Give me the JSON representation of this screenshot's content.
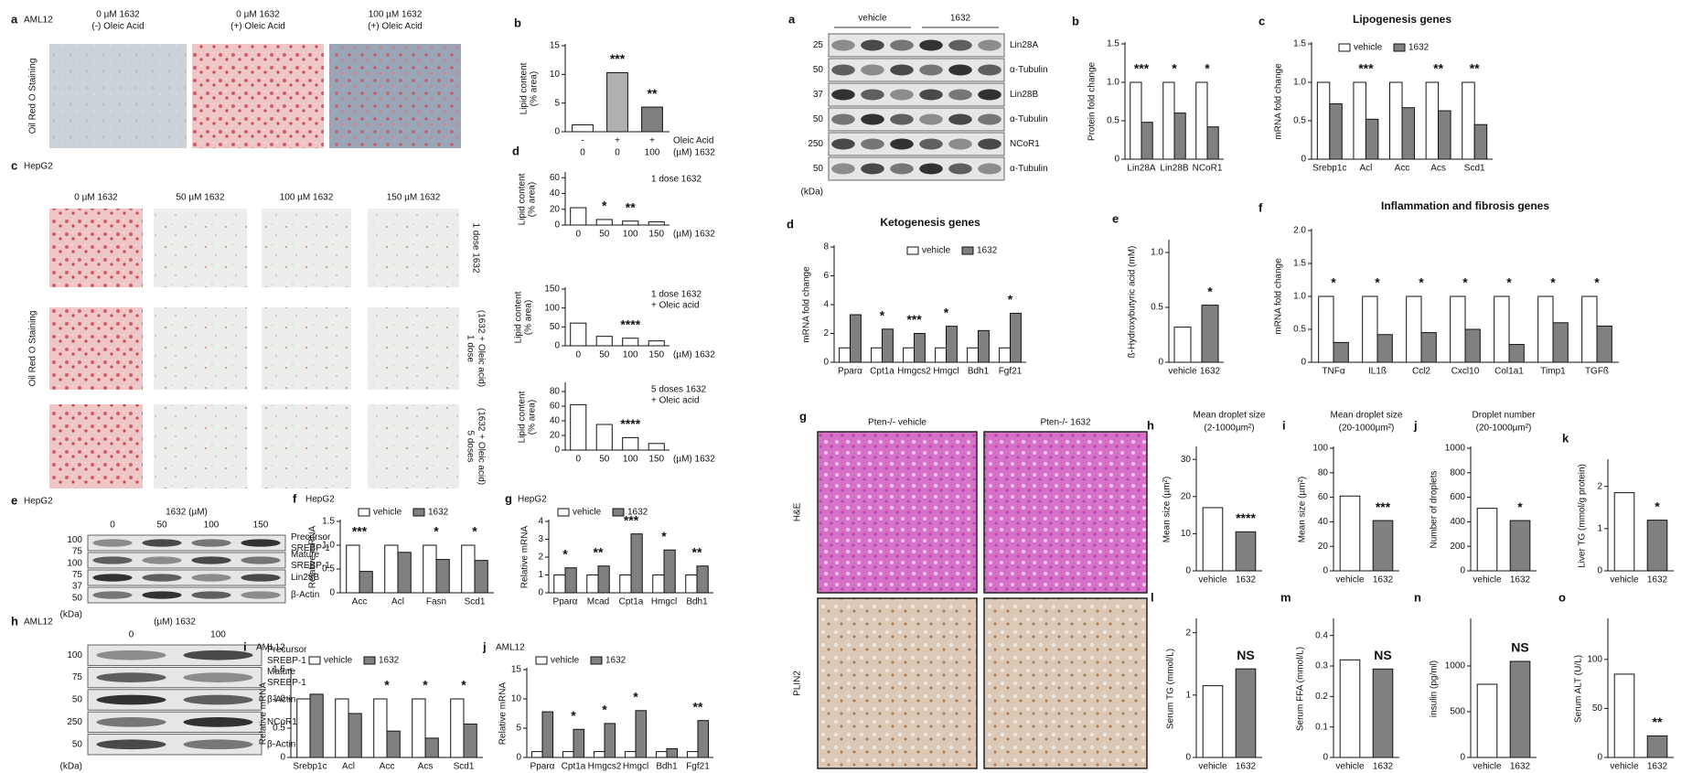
{
  "image_panels": [
    {
      "letter": "a",
      "cell": "AML12",
      "ylabel": "Oil Red O Staining",
      "columns": [
        [
          "0 µM 1632",
          "(-) Oleic Acid"
        ],
        [
          "0 µM 1632",
          "(+) Oleic Acid"
        ],
        [
          "100 µM 1632",
          "(+) Oleic Acid"
        ]
      ]
    },
    {
      "letter": "c",
      "cell": "HepG2",
      "ylabel": "Oil Red O Staining",
      "columns": [
        [
          "0 µM 1632"
        ],
        [
          "50 µM 1632"
        ],
        [
          "100 µM 1632"
        ],
        [
          "150 µM 1632"
        ]
      ],
      "rows": [
        [
          "1 dose 1632"
        ],
        [
          "1 dose",
          "(1632 + Oleic acid)"
        ],
        [
          "5 doses",
          "(1632 + Oleic acid)"
        ]
      ]
    },
    {
      "letter": "g",
      "columns": [
        [
          "Pten-/- vehicle"
        ],
        [
          "Pten-/- 1632"
        ]
      ],
      "rows": [
        [
          "H&E"
        ],
        [
          "PLIN2"
        ]
      ]
    }
  ],
  "blots": [
    {
      "letter": "e",
      "cell": "HepG2",
      "header": "1632 (µM)",
      "lanes": [
        "0",
        "50",
        "100",
        "150"
      ],
      "bands": [
        [
          "Precursor",
          "SREBP-1"
        ],
        [
          "Mature",
          "SREBP-1"
        ],
        [
          "Lin28B"
        ],
        [
          "β-Actin"
        ]
      ],
      "markers": [
        "100",
        "75",
        "100",
        "75",
        "37",
        "50"
      ],
      "unit": "(kDa)"
    },
    {
      "letter": "h",
      "cell": "AML12",
      "header": "(µM) 1632",
      "lanes": [
        "0",
        "100"
      ],
      "bands": [
        [
          "Precursor",
          "SREBP-1"
        ],
        [
          "Mature",
          "SREBP-1"
        ],
        [
          "β-Actin"
        ],
        [
          "NCoR1"
        ],
        [
          "β-Actin"
        ]
      ],
      "markers": [
        "100",
        "75",
        "50",
        "250",
        "50"
      ],
      "unit": "(kDa)"
    },
    {
      "letter": "a",
      "groups": [
        "vehicle",
        "1632"
      ],
      "bands": [
        [
          "Lin28A"
        ],
        [
          "α-Tubulin"
        ],
        [
          "Lin28B"
        ],
        [
          "α-Tubulin"
        ],
        [
          "NCoR1"
        ],
        [
          "α-Tubulin"
        ]
      ],
      "markers": [
        "25",
        "50",
        "37",
        "50",
        "250",
        "50"
      ],
      "unit": "(kDa)"
    }
  ],
  "chart_data": [
    {
      "type": "bar",
      "label": "b",
      "ylabel": [
        "Lipid content",
        "(% area)"
      ],
      "categories": [
        "-",
        "+",
        "+"
      ],
      "categories2": [
        "0",
        "0",
        "100"
      ],
      "row_labels": [
        "Oleic Acid",
        "(µM) 1632"
      ],
      "values": [
        1.2,
        10.3,
        4.3
      ],
      "colors": [
        "#ffffff",
        "#b0b0b0",
        "#808080"
      ],
      "ylim": [
        0,
        15
      ],
      "yticks": [
        0,
        5,
        10,
        15
      ],
      "significance": [
        null,
        "***",
        "**"
      ],
      "sig_color": "#d62728"
    },
    {
      "type": "bar",
      "label": "d",
      "ylabel": [
        "Lipid content",
        "(% area)"
      ],
      "categories": [
        "0",
        "50",
        "100",
        "150"
      ],
      "x_unit": "(µM) 1632",
      "note": [
        "1 dose 1632"
      ],
      "values": [
        22,
        7,
        5,
        4
      ],
      "color": "#ffffff",
      "ylim": [
        0,
        65
      ],
      "yticks": [
        0,
        20,
        40,
        60
      ],
      "significance": [
        null,
        "*",
        "**",
        null
      ],
      "sig_color": "#d62728"
    },
    {
      "type": "bar",
      "ylabel": [
        "Lipid content",
        "(% area)"
      ],
      "categories": [
        "0",
        "50",
        "100",
        "150"
      ],
      "x_unit": "(µM) 1632",
      "note": [
        "1 dose 1632",
        "+ Oleic acid"
      ],
      "values": [
        60,
        25,
        20,
        13
      ],
      "color": "#ffffff",
      "ylim": [
        0,
        150
      ],
      "yticks": [
        0,
        50,
        100,
        150
      ],
      "significance": [
        null,
        null,
        "****",
        null
      ],
      "sig_color": "#d62728"
    },
    {
      "type": "bar",
      "ylabel": [
        "Lipid content",
        "(% area)"
      ],
      "categories": [
        "0",
        "50",
        "100",
        "150"
      ],
      "x_unit": "(µM) 1632",
      "note": [
        "5 doses 1632",
        "+ Oleic acid"
      ],
      "values": [
        62,
        35,
        17,
        9
      ],
      "color": "#ffffff",
      "ylim": [
        0,
        90
      ],
      "yticks": [
        0,
        20,
        40,
        60,
        80
      ],
      "significance": [
        null,
        null,
        "****",
        null
      ],
      "sig_color": "#d62728"
    },
    {
      "type": "bar",
      "label": "f",
      "header": "HepG2",
      "ylabel": [
        "Relative mRNA"
      ],
      "categories": [
        "Acc",
        "Acl",
        "Fasn",
        "Scd1"
      ],
      "legend": true,
      "series": [
        {
          "name": "vehicle",
          "color": "#ffffff",
          "values": [
            1,
            1,
            1,
            1
          ]
        },
        {
          "name": "1632",
          "color": "#808080",
          "values": [
            0.45,
            0.85,
            0.7,
            0.68
          ]
        }
      ],
      "ylim": [
        0,
        1.5
      ],
      "yticks": [
        0,
        0.5,
        {
          "value": 1,
          "label": "1.0"
        },
        1.5
      ],
      "significance": [
        "***",
        null,
        "*",
        "*"
      ],
      "sig_color": "#d62728"
    },
    {
      "type": "bar",
      "label": "g",
      "header": "HepG2",
      "ylabel": [
        "Relative mRNA"
      ],
      "categories": [
        "Pparα",
        "Mcad",
        "Cpt1a",
        "Hmgcl",
        "Bdh1"
      ],
      "legend": true,
      "series": [
        {
          "name": "vehicle",
          "color": "#ffffff",
          "values": [
            1,
            1,
            1,
            1,
            1
          ]
        },
        {
          "name": "1632",
          "color": "#808080",
          "values": [
            1.4,
            1.5,
            3.3,
            2.4,
            1.5
          ]
        }
      ],
      "ylim": [
        0,
        4
      ],
      "yticks": [
        0,
        1,
        2,
        3,
        4
      ],
      "significance": [
        "*",
        "**",
        "***",
        "*",
        "**"
      ],
      "sig_color": "#d62728"
    },
    {
      "type": "bar",
      "label": "i",
      "header": "AML12",
      "ylabel": [
        "Relative mRNA"
      ],
      "categories": [
        "Srebp1c",
        "Acl",
        "Acc",
        "Acs",
        "Scd1"
      ],
      "legend": true,
      "series": [
        {
          "name": "vehicle",
          "color": "#ffffff",
          "values": [
            1,
            1,
            1,
            1,
            1
          ]
        },
        {
          "name": "1632",
          "color": "#808080",
          "values": [
            1.08,
            0.75,
            0.45,
            0.33,
            0.57
          ]
        }
      ],
      "ylim": [
        0,
        1.5
      ],
      "yticks": [
        0,
        0.5,
        {
          "value": 1,
          "label": "1.0"
        },
        1.5
      ],
      "significance": [
        null,
        null,
        "*",
        "*",
        "*"
      ],
      "sig_color": "#d62728"
    },
    {
      "type": "bar",
      "label": "j",
      "header": "AML12",
      "ylabel": [
        "Relative mRNA"
      ],
      "categories": [
        "Pparα",
        "Cpt1a",
        "Hmgcs2",
        "Hmgcl",
        "Bdh1",
        "Fgf21"
      ],
      "legend": true,
      "series": [
        {
          "name": "vehicle",
          "color": "#ffffff",
          "values": [
            1,
            1,
            1,
            1,
            1,
            1
          ]
        },
        {
          "name": "1632",
          "color": "#808080",
          "values": [
            7.8,
            4.8,
            5.8,
            8,
            1.5,
            6.3
          ]
        }
      ],
      "ylim": [
        0,
        15
      ],
      "yticks": [
        0,
        5,
        10,
        15
      ],
      "significance": [
        null,
        "*",
        "*",
        "*",
        null,
        "**"
      ],
      "sig_color": "#d62728"
    },
    {
      "type": "bar",
      "label": "b",
      "ylabel": [
        "Protein fold change"
      ],
      "categories": [
        "Lin28A",
        "Lin28B",
        "NCoR1"
      ],
      "series": [
        {
          "name": "vehicle",
          "color": "#ffffff",
          "values": [
            1,
            1,
            1
          ]
        },
        {
          "name": "1632",
          "color": "#808080",
          "values": [
            0.48,
            0.6,
            0.42
          ]
        }
      ],
      "ylim": [
        0,
        1.5
      ],
      "yticks": [
        0,
        0.5,
        {
          "value": 1,
          "label": "1.0"
        },
        1.5
      ],
      "significance": [
        "***",
        "*",
        "*"
      ],
      "sig_color": "#d62728"
    },
    {
      "type": "bar",
      "label": "c",
      "title": "Lipogenesis genes",
      "ylabel": [
        "mRNA fold change"
      ],
      "categories": [
        "Srebp1c",
        "Acl",
        "Acc",
        "Acs",
        "Scd1"
      ],
      "legend": true,
      "series": [
        {
          "name": "vehicle",
          "color": "#ffffff",
          "values": [
            1,
            1,
            1,
            1,
            1
          ]
        },
        {
          "name": "1632",
          "color": "#808080",
          "values": [
            0.72,
            0.52,
            0.67,
            0.63,
            0.45
          ]
        }
      ],
      "ylim": [
        0,
        1.5
      ],
      "yticks": [
        0,
        0.5,
        {
          "value": 1,
          "label": "1.0"
        },
        1.5
      ],
      "significance": [
        null,
        "***",
        null,
        "**",
        "**"
      ],
      "sig_color": "#d62728"
    },
    {
      "type": "bar",
      "label": "d",
      "title": "Ketogenesis genes",
      "ylabel": [
        "mRNA fold change"
      ],
      "categories": [
        "Pparα",
        "Cpt1a",
        "Hmgcs2",
        "Hmgcl",
        "Bdh1",
        "Fgf21"
      ],
      "legend": true,
      "series": [
        {
          "name": "vehicle",
          "color": "#ffffff",
          "values": [
            1,
            1,
            1,
            1,
            1,
            1
          ]
        },
        {
          "name": "1632",
          "color": "#808080",
          "values": [
            3.3,
            2.3,
            2.0,
            2.5,
            2.2,
            3.4
          ]
        }
      ],
      "ylim": [
        0,
        8
      ],
      "yticks": [
        0,
        2,
        4,
        6,
        8
      ],
      "significance": [
        null,
        "*",
        "***",
        "*",
        null,
        "*"
      ],
      "sig_color": "#d62728"
    },
    {
      "type": "bar",
      "label": "e",
      "ylabel": [
        "ß-Hydroxybutyric acid (mM)"
      ],
      "categories": [
        "vehicle",
        "1632"
      ],
      "values": [
        0.32,
        0.52
      ],
      "colors": [
        "#ffffff",
        "#808080"
      ],
      "ylim": [
        0,
        1.1
      ],
      "yticks": [
        0,
        0.5,
        {
          "value": 1,
          "label": "1.0"
        }
      ],
      "significance": [
        null,
        "*"
      ],
      "sig_color": "#d62728"
    },
    {
      "type": "bar",
      "label": "f",
      "title": "Inflammation and fibrosis genes",
      "ylabel": [
        "mRNA fold change"
      ],
      "categories": [
        "TNFα",
        "IL1ß",
        "Ccl2",
        "Cxcl10",
        "Col1a1",
        "Timp1",
        "TGFß"
      ],
      "series": [
        {
          "name": "vehicle",
          "color": "#ffffff",
          "values": [
            1,
            1,
            1,
            1,
            1,
            1,
            1
          ]
        },
        {
          "name": "1632",
          "color": "#808080",
          "values": [
            0.3,
            0.42,
            0.45,
            0.5,
            0.27,
            0.6,
            0.55
          ]
        }
      ],
      "ylim": [
        0,
        2
      ],
      "yticks": [
        0,
        0.5,
        {
          "value": 1,
          "label": "1.0"
        },
        1.5,
        {
          "value": 2,
          "label": "2.0"
        }
      ],
      "significance": [
        "*",
        "*",
        "*",
        "*",
        "*",
        "*",
        "*"
      ],
      "sig_color": "#d62728"
    },
    {
      "type": "bar",
      "label": "h",
      "title": "Mean droplet size",
      "subtitle": "(2-1000µm²)",
      "ylabel": [
        "Mean size (µm²)"
      ],
      "categories": [
        "vehicle",
        "1632"
      ],
      "values": [
        17,
        10.5
      ],
      "colors": [
        "#ffffff",
        "#808080"
      ],
      "ylim": [
        0,
        33
      ],
      "yticks": [
        0,
        10,
        20,
        30
      ],
      "significance": [
        null,
        "****"
      ],
      "sig_color": "#d62728"
    },
    {
      "type": "bar",
      "label": "i",
      "title": "Mean droplet size",
      "subtitle": "(20-1000µm²)",
      "ylabel": [
        "Mean size (µm²)"
      ],
      "categories": [
        "vehicle",
        "1632"
      ],
      "values": [
        61,
        41
      ],
      "colors": [
        "#ffffff",
        "#808080"
      ],
      "ylim": [
        0,
        100
      ],
      "yticks": [
        0,
        20,
        40,
        60,
        80,
        100
      ],
      "significance": [
        null,
        "***"
      ],
      "sig_color": "#d62728"
    },
    {
      "type": "bar",
      "label": "j",
      "title": "Droplet number",
      "subtitle": "(20-1000µm²)",
      "ylabel": [
        "Number of droplets"
      ],
      "categories": [
        "vehicle",
        "1632"
      ],
      "values": [
        510,
        410
      ],
      "colors": [
        "#ffffff",
        "#808080"
      ],
      "ylim": [
        0,
        1000
      ],
      "yticks": [
        0,
        200,
        400,
        600,
        800,
        1000
      ],
      "significance": [
        null,
        "*"
      ],
      "sig_color": "#d62728"
    },
    {
      "type": "bar",
      "label": "k",
      "ylabel": [
        "Liver TG (mmol/g protein)"
      ],
      "categories": [
        "vehicle",
        "1632"
      ],
      "values": [
        1.85,
        1.2
      ],
      "colors": [
        "#ffffff",
        "#808080"
      ],
      "ylim": [
        0,
        2.6
      ],
      "yticks": [
        0,
        1,
        2
      ],
      "significance": [
        null,
        "*"
      ],
      "sig_color": "#d62728"
    },
    {
      "type": "bar",
      "label": "l",
      "ylabel": [
        "Serum TG (mmol/L)"
      ],
      "categories": [
        "vehicle",
        "1632"
      ],
      "values": [
        1.15,
        1.42
      ],
      "colors": [
        "#ffffff",
        "#808080"
      ],
      "ylim": [
        0,
        2.2
      ],
      "yticks": [
        0,
        1,
        2
      ],
      "significance": [
        null,
        "NS"
      ],
      "sig_color": "#111111"
    },
    {
      "type": "bar",
      "label": "m",
      "ylabel": [
        "Serum FFA (mmol/L)"
      ],
      "categories": [
        "vehicle",
        "1632"
      ],
      "values": [
        0.32,
        0.29
      ],
      "colors": [
        "#ffffff",
        "#808080"
      ],
      "ylim": [
        0,
        0.45
      ],
      "yticks": [
        0,
        0.1,
        0.2,
        0.3,
        0.4
      ],
      "significance": [
        null,
        "NS"
      ],
      "sig_color": "#111111"
    },
    {
      "type": "bar",
      "label": "n",
      "ylabel": [
        "insulin (pg/ml)"
      ],
      "categories": [
        "vehicle",
        "1632"
      ],
      "values": [
        800,
        1050
      ],
      "colors": [
        "#ffffff",
        "#808080"
      ],
      "ylim": [
        0,
        1500
      ],
      "yticks": [
        0,
        500,
        1000
      ],
      "significance": [
        null,
        "NS"
      ],
      "sig_color": "#111111"
    },
    {
      "type": "bar",
      "label": "o",
      "ylabel": [
        "Serum ALT (U/L)"
      ],
      "categories": [
        "vehicle",
        "1632"
      ],
      "values": [
        85,
        22
      ],
      "colors": [
        "#ffffff",
        "#808080"
      ],
      "ylim": [
        0,
        140
      ],
      "yticks": [
        0,
        50,
        100
      ],
      "significance": [
        null,
        "**"
      ],
      "sig_color": "#d62728"
    }
  ]
}
